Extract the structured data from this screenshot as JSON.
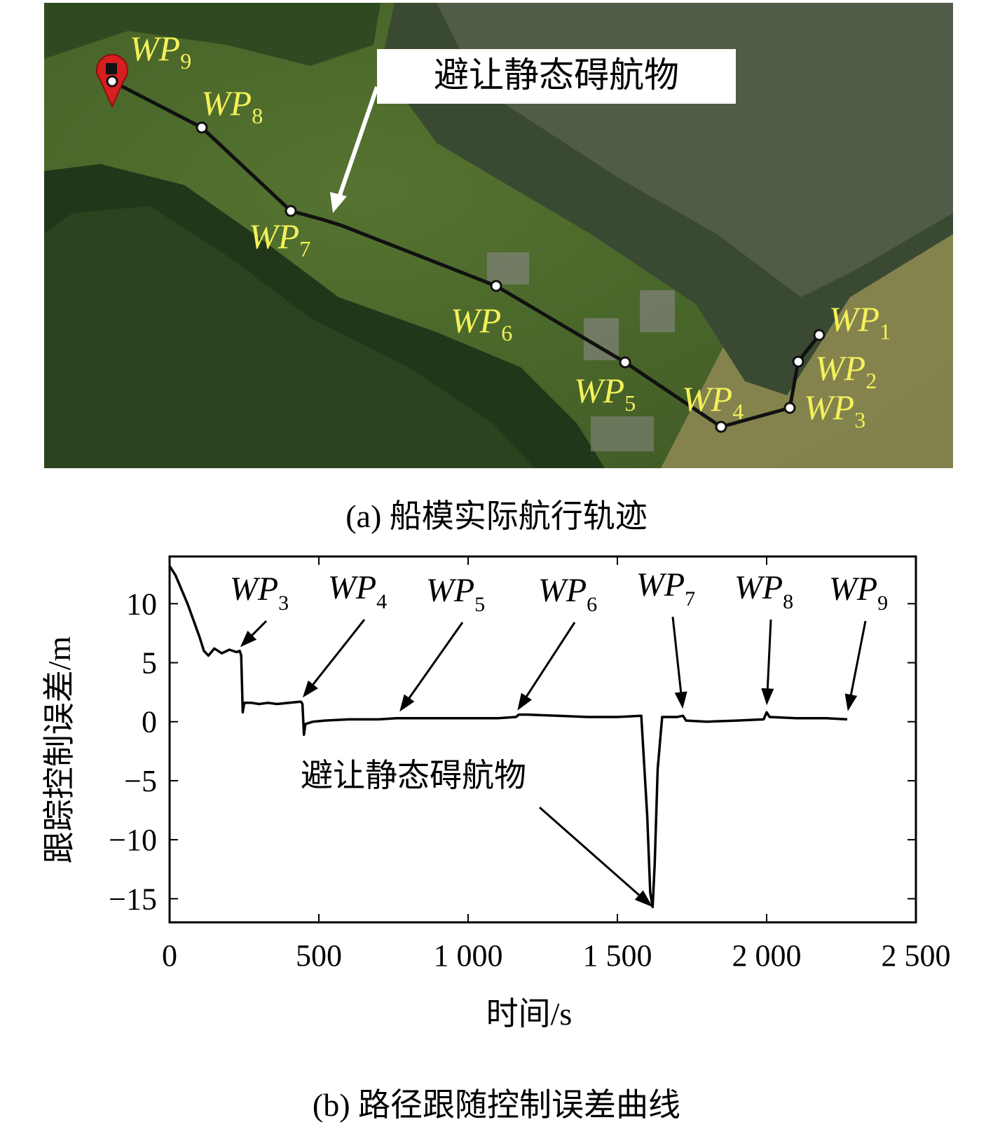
{
  "map": {
    "waypoints": [
      "WP1",
      "WP2",
      "WP3",
      "WP4",
      "WP5",
      "WP6",
      "WP7",
      "WP8",
      "WP9"
    ],
    "callout": "避让静态碍航物",
    "caption": "(a) 船模实际航行轨迹",
    "colors": {
      "track": "#111111",
      "label": "#f3f05a",
      "water": "#4e6b2c",
      "marker": "#d81e1e"
    }
  },
  "chart_data": {
    "type": "line",
    "xlabel": "时间/s",
    "ylabel": "跟踪控制误差/m",
    "xlim": [
      0,
      2500
    ],
    "ylim": [
      -17,
      14
    ],
    "xticks": [
      0,
      500,
      1000,
      1500,
      2000,
      2500
    ],
    "xtick_labels": [
      "0",
      "500",
      "1 000",
      "1 500",
      "2 000",
      "2 500"
    ],
    "yticks": [
      -15,
      -10,
      -5,
      0,
      5,
      10
    ],
    "ytick_labels": [
      "−15",
      "−10",
      "−5",
      "0",
      "5",
      "10"
    ],
    "grid": false,
    "series": [
      {
        "x": [
          0,
          20,
          40,
          60,
          80,
          100,
          115,
          130,
          150,
          175,
          200,
          225,
          235,
          240,
          245,
          250,
          275,
          300,
          330,
          360,
          400,
          440,
          445,
          450,
          455,
          480,
          520,
          600,
          700,
          760,
          770,
          800,
          900,
          1000,
          1100,
          1160,
          1170,
          1200,
          1300,
          1400,
          1500,
          1580,
          1600,
          1610,
          1618,
          1625,
          1635,
          1650,
          1700,
          1720,
          1730,
          1800,
          1900,
          1990,
          2000,
          2010,
          2100,
          2200,
          2270
        ],
        "y": [
          13.2,
          12.4,
          11.2,
          10.0,
          8.6,
          7.2,
          6.0,
          5.6,
          6.2,
          5.8,
          6.1,
          5.9,
          6.0,
          5.6,
          0.8,
          1.6,
          1.6,
          1.5,
          1.6,
          1.5,
          1.6,
          1.7,
          1.5,
          -1.1,
          -0.2,
          0.0,
          0.1,
          0.2,
          0.2,
          0.3,
          0.3,
          0.3,
          0.3,
          0.3,
          0.3,
          0.4,
          0.6,
          0.6,
          0.5,
          0.4,
          0.4,
          0.5,
          -8.0,
          -14.5,
          -15.7,
          -12.0,
          -4.0,
          0.4,
          0.4,
          0.5,
          0.1,
          0.0,
          0.1,
          0.2,
          0.8,
          0.4,
          0.3,
          0.3,
          0.2
        ]
      }
    ],
    "annotations": [
      {
        "label": "WP",
        "sub": "3",
        "x": 230,
        "y": 5.8
      },
      {
        "label": "WP",
        "sub": "4",
        "x": 440,
        "y": 1.5
      },
      {
        "label": "WP",
        "sub": "5",
        "x": 765,
        "y": 0.3
      },
      {
        "label": "WP",
        "sub": "6",
        "x": 1160,
        "y": 0.4
      },
      {
        "label": "WP",
        "sub": "7",
        "x": 1720,
        "y": 0.5
      },
      {
        "label": "WP",
        "sub": "8",
        "x": 2000,
        "y": 0.8
      },
      {
        "label": "WP",
        "sub": "9",
        "x": 2270,
        "y": 0.3
      }
    ],
    "note": {
      "text": "避让静态碍航物",
      "x": 1618,
      "y": -15.7
    }
  },
  "chart_caption": "(b) 路径跟随控制误差曲线"
}
